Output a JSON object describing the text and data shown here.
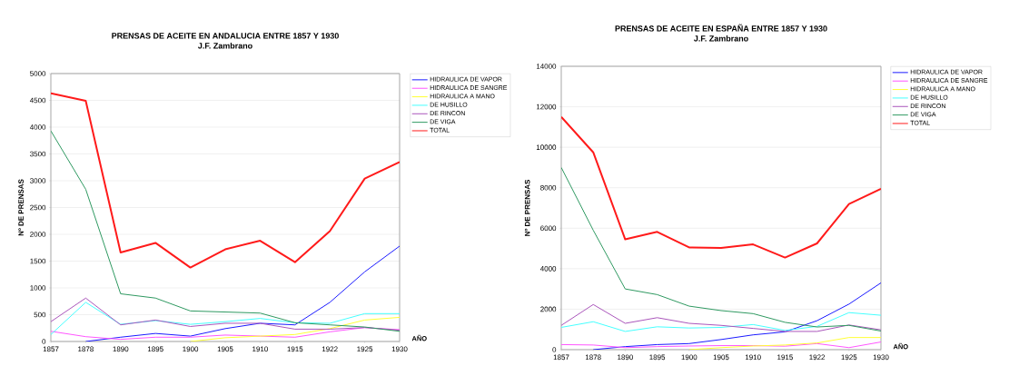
{
  "chart_data": [
    {
      "type": "line",
      "title": "PRENSAS DE ACEITE EN ANDALUCIA ENTRE 1857 Y 1930",
      "subtitle": "J.F. Zambrano",
      "xlabel": "AÑO",
      "ylabel": "Nº DE PRENSAS",
      "categories": [
        "1857",
        "1878",
        "1890",
        "1895",
        "1900",
        "1905",
        "1910",
        "1915",
        "1922",
        "1925",
        "1930"
      ],
      "ylim": [
        0,
        5000
      ],
      "yticks": [
        0,
        500,
        1000,
        1500,
        2000,
        2500,
        3000,
        3500,
        4000,
        4500,
        5000
      ],
      "grid": "y",
      "legend": "top right",
      "marker": "none",
      "line_style": "solid",
      "series": [
        {
          "name": "HIDRAULICA DE VAPOR",
          "color": "#1a1aff",
          "values": [
            null,
            0,
            80,
            150,
            100,
            240,
            340,
            310,
            730,
            1300,
            1780
          ]
        },
        {
          "name": "HIDRAULICA DE SANGRE",
          "color": "#ff55ff",
          "values": [
            190,
            90,
            40,
            80,
            80,
            120,
            100,
            80,
            180,
            260,
            220
          ]
        },
        {
          "name": "HIDRAULICA A MANO",
          "color": "#ffff33",
          "values": [
            null,
            null,
            null,
            null,
            0,
            70,
            100,
            130,
            240,
            400,
            450
          ]
        },
        {
          "name": "DE HUSILLO",
          "color": "#44ffff",
          "values": [
            130,
            730,
            320,
            390,
            320,
            370,
            430,
            350,
            340,
            520,
            520
          ]
        },
        {
          "name": "DE RINCON",
          "color": "#aa55bb",
          "values": [
            370,
            810,
            310,
            400,
            280,
            340,
            340,
            230,
            230,
            260,
            210
          ]
        },
        {
          "name": "DE VIGA",
          "color": "#2e9960",
          "values": [
            3930,
            2840,
            890,
            810,
            570,
            550,
            530,
            350,
            310,
            270,
            190
          ]
        },
        {
          "name": "TOTAL",
          "color": "#ff1a1a",
          "values": [
            4630,
            4490,
            1660,
            1840,
            1380,
            1720,
            1880,
            1480,
            2060,
            3040,
            3350
          ]
        }
      ]
    },
    {
      "type": "line",
      "title": "PRENSAS DE ACEITE EN ESPAÑA ENTRE 1857 Y 1930",
      "subtitle": "J.F. Zambrano",
      "xlabel": "AÑO",
      "ylabel": "Nº DE PRENSAS",
      "categories": [
        "1857",
        "1878",
        "1890",
        "1895",
        "1900",
        "1905",
        "1910",
        "1915",
        "1922",
        "1925",
        "1930"
      ],
      "ylim": [
        0,
        14000
      ],
      "yticks": [
        0,
        2000,
        4000,
        6000,
        8000,
        10000,
        12000,
        14000
      ],
      "grid": "y",
      "legend": "top right",
      "marker": "none",
      "line_style": "solid",
      "series": [
        {
          "name": "HIDRAULICA DE VAPOR",
          "color": "#1a1aff",
          "values": [
            null,
            0,
            150,
            250,
            300,
            500,
            730,
            880,
            1430,
            2250,
            3300
          ]
        },
        {
          "name": "HIDRAULICA DE SANGRE",
          "color": "#ff55ff",
          "values": [
            250,
            230,
            100,
            150,
            180,
            200,
            200,
            170,
            300,
            100,
            380
          ]
        },
        {
          "name": "HIDRAULICA A MANO",
          "color": "#ffff33",
          "values": [
            null,
            null,
            null,
            null,
            0,
            100,
            180,
            230,
            330,
            600,
            600
          ]
        },
        {
          "name": "DE HUSILLO",
          "color": "#44ffff",
          "values": [
            1100,
            1380,
            900,
            1130,
            1070,
            1100,
            1240,
            950,
            1150,
            1830,
            1700
          ]
        },
        {
          "name": "DE RINCON",
          "color": "#aa55bb",
          "values": [
            1200,
            2230,
            1300,
            1580,
            1300,
            1200,
            1050,
            900,
            900,
            1220,
            980
          ]
        },
        {
          "name": "DE VIGA",
          "color": "#2e9960",
          "values": [
            9000,
            5900,
            3000,
            2720,
            2150,
            1930,
            1780,
            1350,
            1120,
            1200,
            920
          ]
        },
        {
          "name": "TOTAL",
          "color": "#ff1a1a",
          "values": [
            11500,
            9750,
            5450,
            5820,
            5050,
            5030,
            5200,
            4550,
            5250,
            7200,
            7950
          ]
        }
      ]
    }
  ]
}
